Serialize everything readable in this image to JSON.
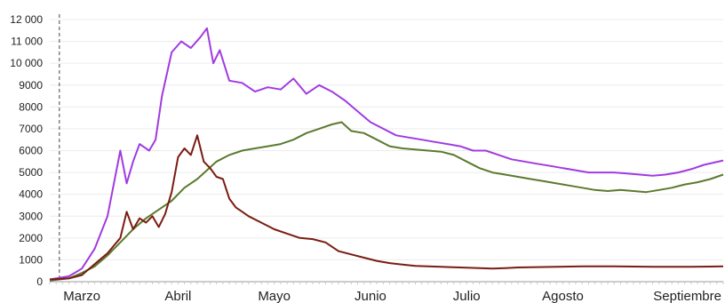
{
  "chart_data": {
    "type": "line",
    "title": "",
    "xlabel": "",
    "ylabel": "",
    "ylim": [
      0,
      12000
    ],
    "y_ticks": [
      0,
      1000,
      2000,
      3000,
      4000,
      5000,
      6000,
      7000,
      8000,
      9000,
      10000,
      11000,
      12000
    ],
    "y_tick_labels": [
      "0",
      "1000",
      "2000",
      "3000",
      "4000",
      "5000",
      "6000",
      "7000",
      "8000",
      "9000",
      "10 000",
      "11 000",
      "12 000"
    ],
    "x_range_days": [
      0,
      210
    ],
    "month_labels": [
      {
        "label": "Marzo",
        "day": 10
      },
      {
        "label": "Abril",
        "day": 40
      },
      {
        "label": "Mayo",
        "day": 70
      },
      {
        "label": "Junio",
        "day": 100
      },
      {
        "label": "Julio",
        "day": 130
      },
      {
        "label": "Agosto",
        "day": 160
      },
      {
        "label": "Septiembre",
        "day": 205
      }
    ],
    "reference_line_day": 3,
    "grid": true,
    "legend": "none",
    "series": [
      {
        "color": "#a13be0",
        "points": [
          [
            0,
            100
          ],
          [
            6,
            250
          ],
          [
            10,
            600
          ],
          [
            14,
            1500
          ],
          [
            18,
            3000
          ],
          [
            22,
            6000
          ],
          [
            24,
            4500
          ],
          [
            26,
            5500
          ],
          [
            28,
            6300
          ],
          [
            31,
            6000
          ],
          [
            33,
            6500
          ],
          [
            35,
            8500
          ],
          [
            38,
            10500
          ],
          [
            41,
            11000
          ],
          [
            44,
            10700
          ],
          [
            47,
            11200
          ],
          [
            49,
            11600
          ],
          [
            51,
            10000
          ],
          [
            53,
            10600
          ],
          [
            56,
            9200
          ],
          [
            60,
            9100
          ],
          [
            64,
            8700
          ],
          [
            68,
            8900
          ],
          [
            72,
            8800
          ],
          [
            76,
            9300
          ],
          [
            80,
            8600
          ],
          [
            84,
            9000
          ],
          [
            88,
            8700
          ],
          [
            92,
            8300
          ],
          [
            96,
            7800
          ],
          [
            100,
            7300
          ],
          [
            104,
            7000
          ],
          [
            108,
            6700
          ],
          [
            112,
            6600
          ],
          [
            116,
            6500
          ],
          [
            120,
            6400
          ],
          [
            124,
            6300
          ],
          [
            128,
            6200
          ],
          [
            132,
            6000
          ],
          [
            136,
            6000
          ],
          [
            140,
            5800
          ],
          [
            144,
            5600
          ],
          [
            148,
            5500
          ],
          [
            152,
            5400
          ],
          [
            156,
            5300
          ],
          [
            160,
            5200
          ],
          [
            164,
            5100
          ],
          [
            168,
            5000
          ],
          [
            172,
            5000
          ],
          [
            176,
            5000
          ],
          [
            180,
            4950
          ],
          [
            184,
            4900
          ],
          [
            188,
            4850
          ],
          [
            192,
            4900
          ],
          [
            196,
            5000
          ],
          [
            200,
            5150
          ],
          [
            204,
            5350
          ],
          [
            210,
            5550
          ]
        ]
      },
      {
        "color": "#5c7a2e",
        "points": [
          [
            0,
            50
          ],
          [
            6,
            150
          ],
          [
            10,
            400
          ],
          [
            14,
            700
          ],
          [
            18,
            1200
          ],
          [
            22,
            1800
          ],
          [
            26,
            2400
          ],
          [
            30,
            2900
          ],
          [
            34,
            3300
          ],
          [
            38,
            3700
          ],
          [
            42,
            4300
          ],
          [
            46,
            4700
          ],
          [
            49,
            5100
          ],
          [
            52,
            5500
          ],
          [
            56,
            5800
          ],
          [
            60,
            6000
          ],
          [
            64,
            6100
          ],
          [
            68,
            6200
          ],
          [
            72,
            6300
          ],
          [
            76,
            6500
          ],
          [
            80,
            6800
          ],
          [
            84,
            7000
          ],
          [
            88,
            7200
          ],
          [
            91,
            7300
          ],
          [
            94,
            6900
          ],
          [
            98,
            6800
          ],
          [
            102,
            6500
          ],
          [
            106,
            6200
          ],
          [
            110,
            6100
          ],
          [
            114,
            6050
          ],
          [
            118,
            6000
          ],
          [
            122,
            5950
          ],
          [
            126,
            5800
          ],
          [
            130,
            5500
          ],
          [
            134,
            5200
          ],
          [
            138,
            5000
          ],
          [
            142,
            4900
          ],
          [
            146,
            4800
          ],
          [
            150,
            4700
          ],
          [
            154,
            4600
          ],
          [
            158,
            4500
          ],
          [
            162,
            4400
          ],
          [
            166,
            4300
          ],
          [
            170,
            4200
          ],
          [
            174,
            4150
          ],
          [
            178,
            4200
          ],
          [
            182,
            4150
          ],
          [
            186,
            4100
          ],
          [
            190,
            4200
          ],
          [
            194,
            4300
          ],
          [
            198,
            4450
          ],
          [
            202,
            4550
          ],
          [
            206,
            4700
          ],
          [
            210,
            4900
          ]
        ]
      },
      {
        "color": "#7a1c12",
        "points": [
          [
            0,
            100
          ],
          [
            6,
            150
          ],
          [
            10,
            300
          ],
          [
            14,
            800
          ],
          [
            18,
            1300
          ],
          [
            22,
            2000
          ],
          [
            24,
            3200
          ],
          [
            26,
            2400
          ],
          [
            28,
            2900
          ],
          [
            30,
            2700
          ],
          [
            32,
            3000
          ],
          [
            34,
            2500
          ],
          [
            36,
            3100
          ],
          [
            38,
            4100
          ],
          [
            40,
            5700
          ],
          [
            42,
            6100
          ],
          [
            44,
            5800
          ],
          [
            46,
            6700
          ],
          [
            48,
            5500
          ],
          [
            50,
            5200
          ],
          [
            52,
            4800
          ],
          [
            54,
            4700
          ],
          [
            56,
            3800
          ],
          [
            58,
            3400
          ],
          [
            60,
            3200
          ],
          [
            62,
            3000
          ],
          [
            66,
            2700
          ],
          [
            70,
            2400
          ],
          [
            74,
            2200
          ],
          [
            78,
            2000
          ],
          [
            82,
            1950
          ],
          [
            86,
            1800
          ],
          [
            90,
            1400
          ],
          [
            94,
            1250
          ],
          [
            98,
            1100
          ],
          [
            102,
            950
          ],
          [
            106,
            850
          ],
          [
            110,
            780
          ],
          [
            114,
            720
          ],
          [
            118,
            700
          ],
          [
            122,
            680
          ],
          [
            126,
            660
          ],
          [
            130,
            640
          ],
          [
            134,
            620
          ],
          [
            138,
            600
          ],
          [
            142,
            620
          ],
          [
            146,
            650
          ],
          [
            150,
            660
          ],
          [
            154,
            670
          ],
          [
            158,
            680
          ],
          [
            162,
            690
          ],
          [
            166,
            700
          ],
          [
            170,
            700
          ],
          [
            176,
            700
          ],
          [
            182,
            690
          ],
          [
            188,
            680
          ],
          [
            194,
            680
          ],
          [
            200,
            680
          ],
          [
            206,
            690
          ],
          [
            210,
            700
          ]
        ]
      }
    ]
  }
}
